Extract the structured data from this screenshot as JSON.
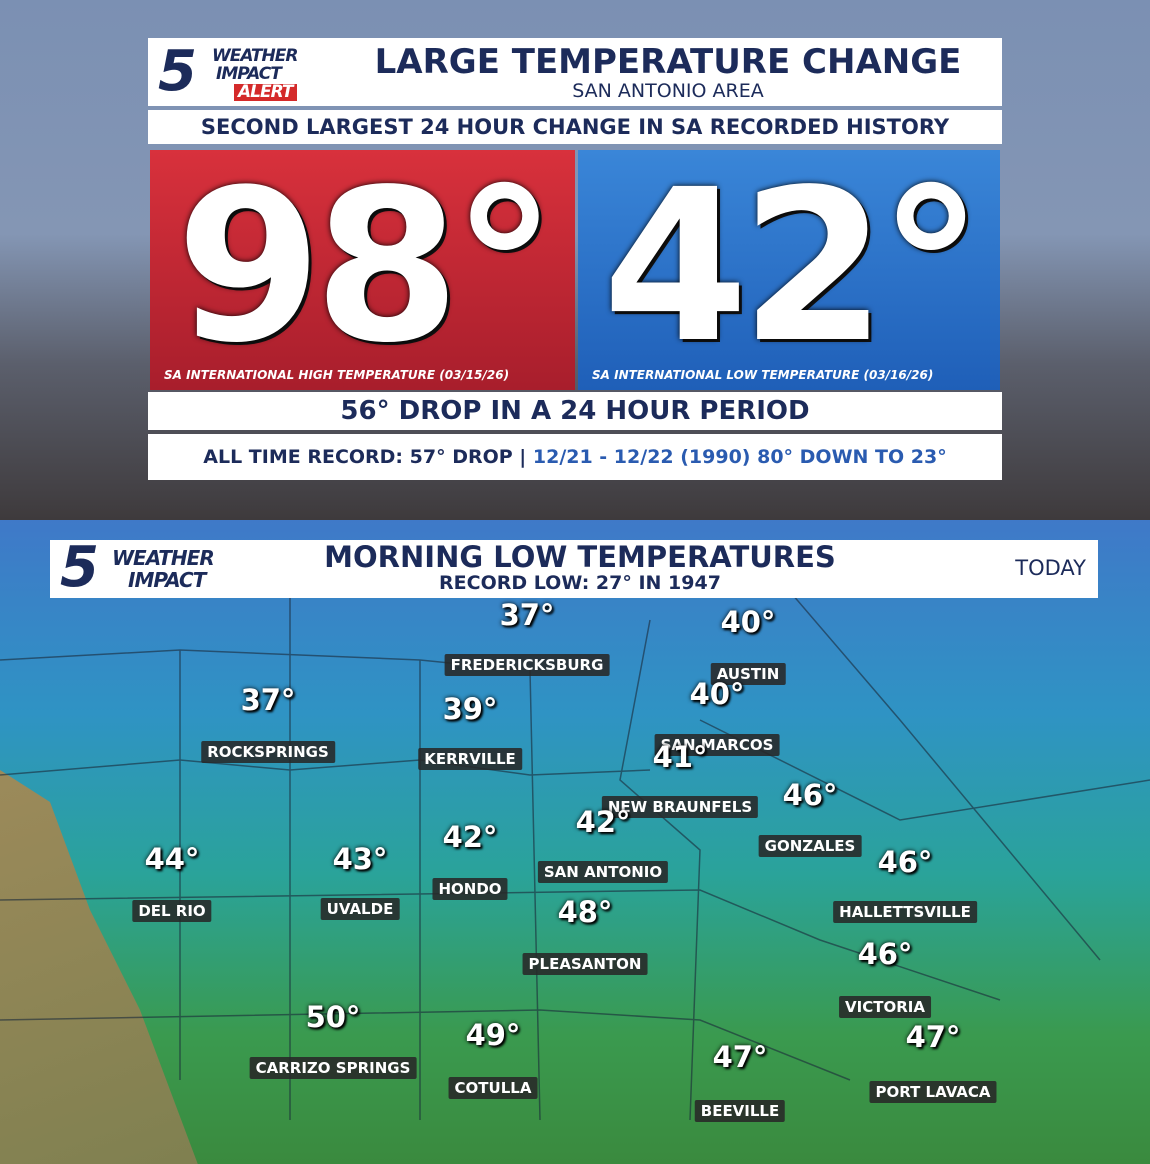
{
  "top_panel": {
    "logo": {
      "number": "5",
      "line1": "WEATHER",
      "line2": "IMPACT",
      "line3": "ALERT"
    },
    "title": "LARGE TEMPERATURE CHANGE",
    "subtitle": "SAN ANTONIO AREA",
    "banner": "SECOND LARGEST 24 HOUR CHANGE IN SA RECORDED HISTORY",
    "high": {
      "temp": "98°",
      "caption": "SA INTERNATIONAL HIGH TEMPERATURE (03/15/26)"
    },
    "low": {
      "temp": "42°",
      "caption": "SA INTERNATIONAL LOW TEMPERATURE (03/16/26)"
    },
    "drop": "56° DROP IN A 24 HOUR PERIOD",
    "record_label": "ALL TIME RECORD: 57° DROP |",
    "record_detail": "12/21 - 12/22 (1990) 80° DOWN TO 23°"
  },
  "map_panel": {
    "logo": {
      "number": "5",
      "line1": "WEATHER",
      "line2": "IMPACT"
    },
    "title": "MORNING LOW TEMPERATURES",
    "subtitle": "RECORD LOW: 27° IN 1947",
    "tag": "TODAY",
    "cities": [
      {
        "name": "FREDERICKSBURG",
        "temp": "37°"
      },
      {
        "name": "AUSTIN",
        "temp": "40°"
      },
      {
        "name": "ROCKSPRINGS",
        "temp": "37°"
      },
      {
        "name": "KERRVILLE",
        "temp": "39°"
      },
      {
        "name": "SAN MARCOS",
        "temp": "40°"
      },
      {
        "name": "NEW BRAUNFELS",
        "temp": "41°"
      },
      {
        "name": "GONZALES",
        "temp": "46°"
      },
      {
        "name": "SAN ANTONIO",
        "temp": "42°"
      },
      {
        "name": "HONDO",
        "temp": "42°"
      },
      {
        "name": "UVALDE",
        "temp": "43°"
      },
      {
        "name": "DEL RIO",
        "temp": "44°"
      },
      {
        "name": "HALLETTSVILLE",
        "temp": "46°"
      },
      {
        "name": "PLEASANTON",
        "temp": "48°"
      },
      {
        "name": "VICTORIA",
        "temp": "46°"
      },
      {
        "name": "CARRIZO SPRINGS",
        "temp": "50°"
      },
      {
        "name": "COTULLA",
        "temp": "49°"
      },
      {
        "name": "BEEVILLE",
        "temp": "47°"
      },
      {
        "name": "PORT LAVACA",
        "temp": "47°"
      }
    ]
  }
}
